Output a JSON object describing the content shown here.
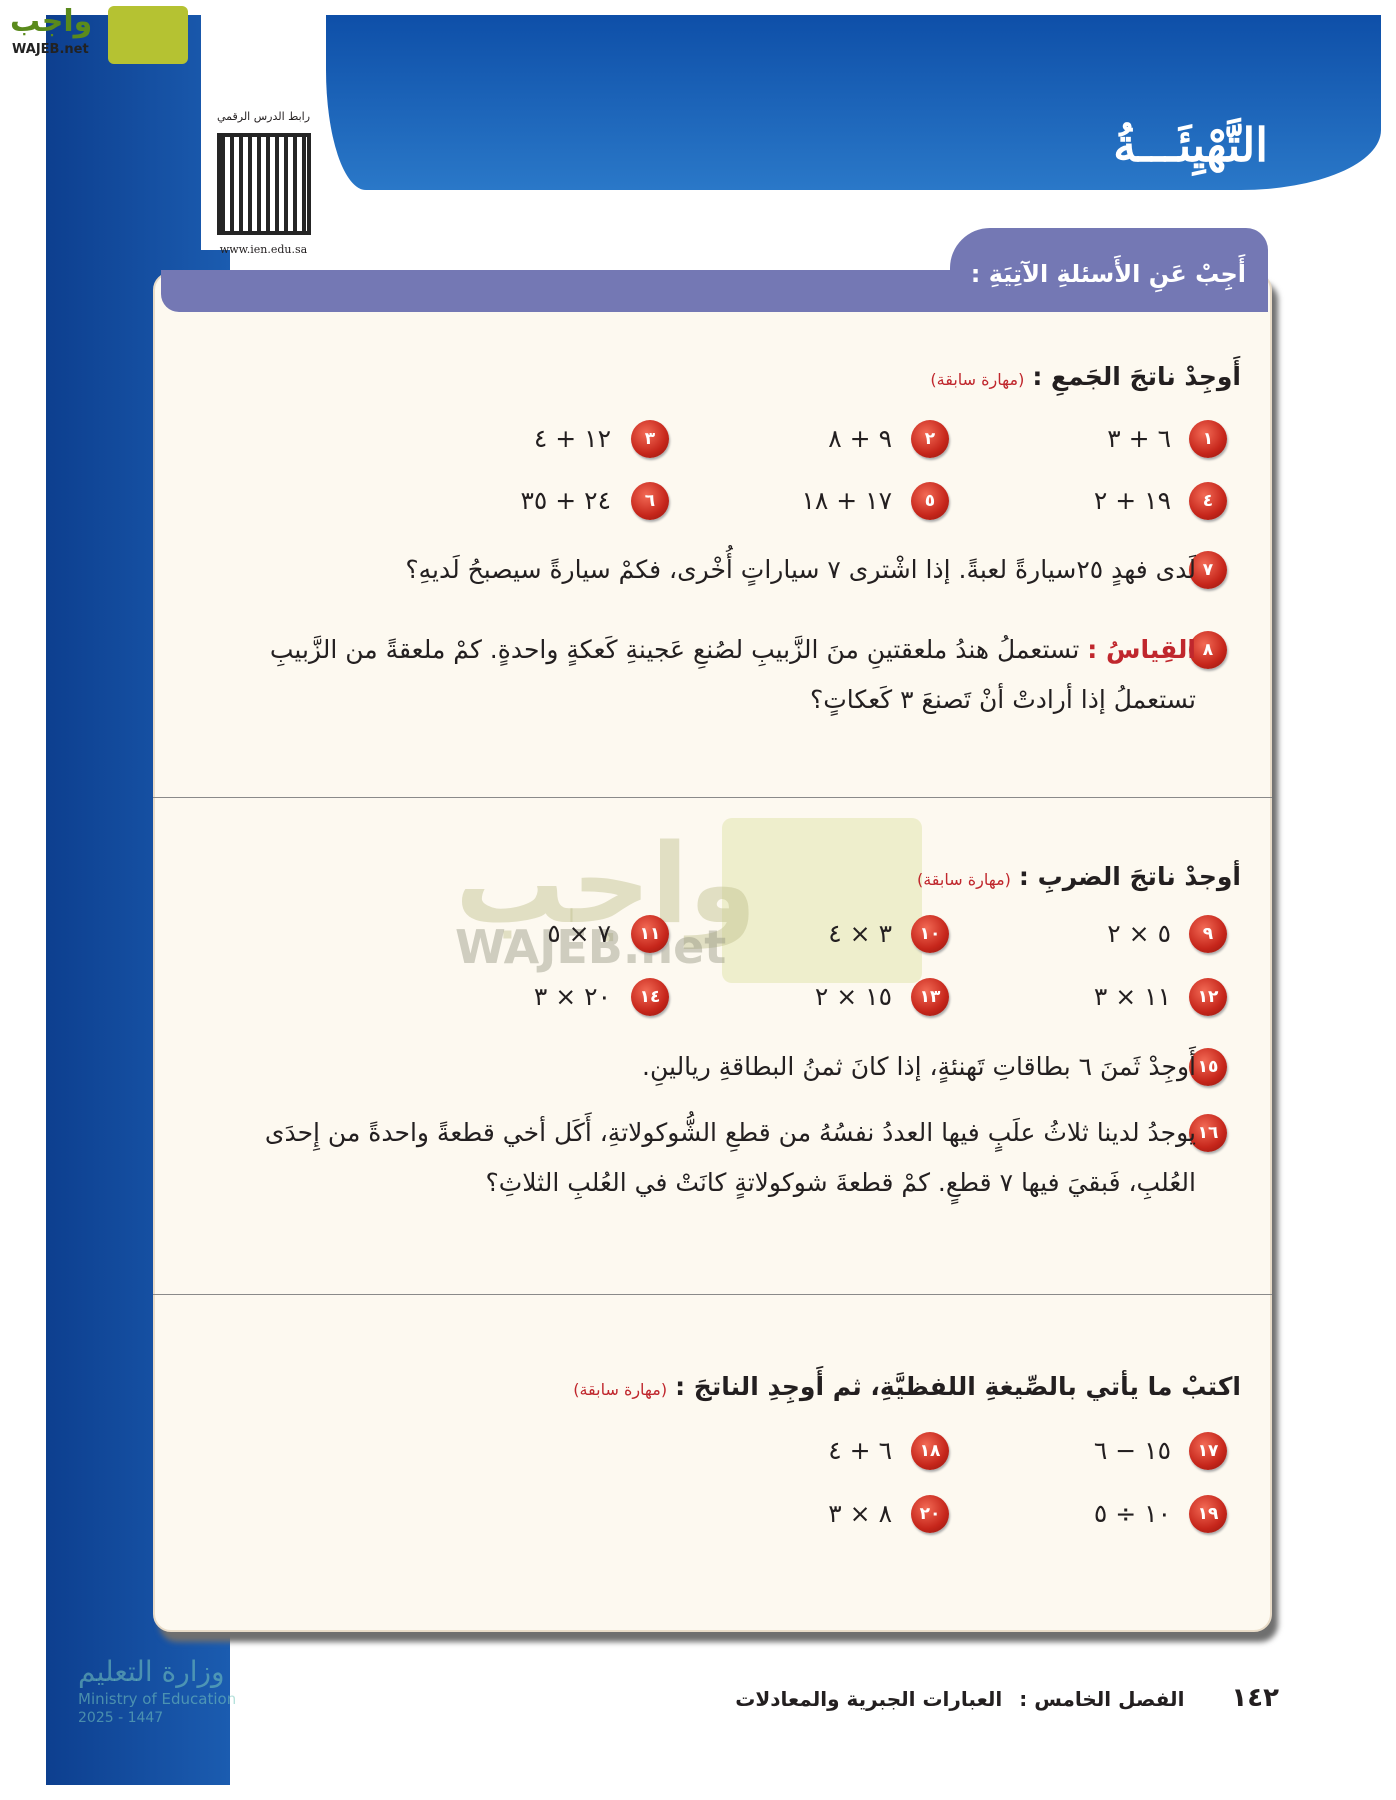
{
  "brand": {
    "logo_text": "واجب",
    "logo_latin": "WAJEB.net"
  },
  "header": {
    "title": "التَّهْيِئَـــةُ"
  },
  "qr": {
    "label": "رابط الدرس الرقمي",
    "url": "www.ien.edu.sa"
  },
  "banner": {
    "text": "أَجِبْ عَنِ الأَسئلةِ الآتِيَةِ :"
  },
  "skill_tag": "(مهارة سابقة)",
  "sections": [
    {
      "heading": "أَوجِدْ ناتجَ الجَمعِ :",
      "exercises": [
        {
          "num": "١",
          "expr": "٦ + ٣"
        },
        {
          "num": "٢",
          "expr": "٩ + ٨"
        },
        {
          "num": "٣",
          "expr": "١٢ + ٤"
        },
        {
          "num": "٤",
          "expr": "١٩ + ٢"
        },
        {
          "num": "٥",
          "expr": "١٧ + ١٨"
        },
        {
          "num": "٦",
          "expr": "٢٤ + ٣٥"
        }
      ],
      "problems": [
        {
          "num": "٧",
          "label": "",
          "text": "لَدى فهدٍ ٢٥سيارةً لعبةً. إذا اشْترى ٧ سياراتٍ أُخْرى، فكمْ سيارةً سيصبحُ لَديهِ؟"
        },
        {
          "num": "٨",
          "label": "القِياسُ :",
          "text": "تستعملُ هندُ ملعقتينِ منَ الزَّبيبِ لصُنعِ عَجينةِ كَعكةٍ واحدةٍ. كمْ ملعقةً من الزَّبيبِ تستعملُ إذا أرادتْ أنْ تَصنعَ ٣ كَعكاتٍ؟"
        }
      ]
    },
    {
      "heading": "أوجدْ ناتجَ الضربِ :",
      "exercises": [
        {
          "num": "٩",
          "expr": "٥ × ٢"
        },
        {
          "num": "١٠",
          "expr": "٣ × ٤"
        },
        {
          "num": "١١",
          "expr": "٧ × ٥"
        },
        {
          "num": "١٢",
          "expr": "١١ × ٣"
        },
        {
          "num": "١٣",
          "expr": "١٥ × ٢"
        },
        {
          "num": "١٤",
          "expr": "٢٠ × ٣"
        }
      ],
      "problems": [
        {
          "num": "١٥",
          "label": "",
          "text": "أَوجِدْ ثَمنَ ٦ بطاقاتِ تَهنئةٍ، إذا كانَ ثمنُ البطاقةِ ريالينِ."
        },
        {
          "num": "١٦",
          "label": "",
          "text": "يوجدُ لدينا ثلاثُ علَبٍ فيها العددُ نفسُهُ من قطعِ الشُّوكولاتةِ، أَكَل أخي قطعةً واحدةً من إِحدَى العُلبِ، فَبقيَ فيها ٧ قطعٍ. كمْ قطعةَ شوكولاتةٍ كانَتْ في العُلبِ الثلاثِ؟"
        }
      ]
    },
    {
      "heading": "اكتبْ ما يأتي بالصِّيغةِ اللفظيَّةِ، ثم أَوجِدِ الناتجَ :",
      "exercises": [
        {
          "num": "١٧",
          "expr": "١٥ − ٦"
        },
        {
          "num": "١٨",
          "expr": "٦ + ٤"
        },
        {
          "num": "١٩",
          "expr": "١٠ ÷ ٥"
        },
        {
          "num": "٢٠",
          "expr": "٨ × ٣"
        }
      ]
    }
  ],
  "watermark": {
    "text": "واجب",
    "latin": "WAJEB.net"
  },
  "ministry": {
    "ar": "وزارة التعليم",
    "en": "Ministry of Education",
    "year": "2025 - 1447"
  },
  "footer": {
    "page": "١٤٢",
    "chapter": "الفصل الخامس :",
    "chapter_title": "العبارات الجبرية والمعادلات"
  },
  "colors": {
    "blue": "#1b5cb0",
    "banner": "#7478b4",
    "badge": "#c6261b",
    "card": "#fdf9f0"
  }
}
